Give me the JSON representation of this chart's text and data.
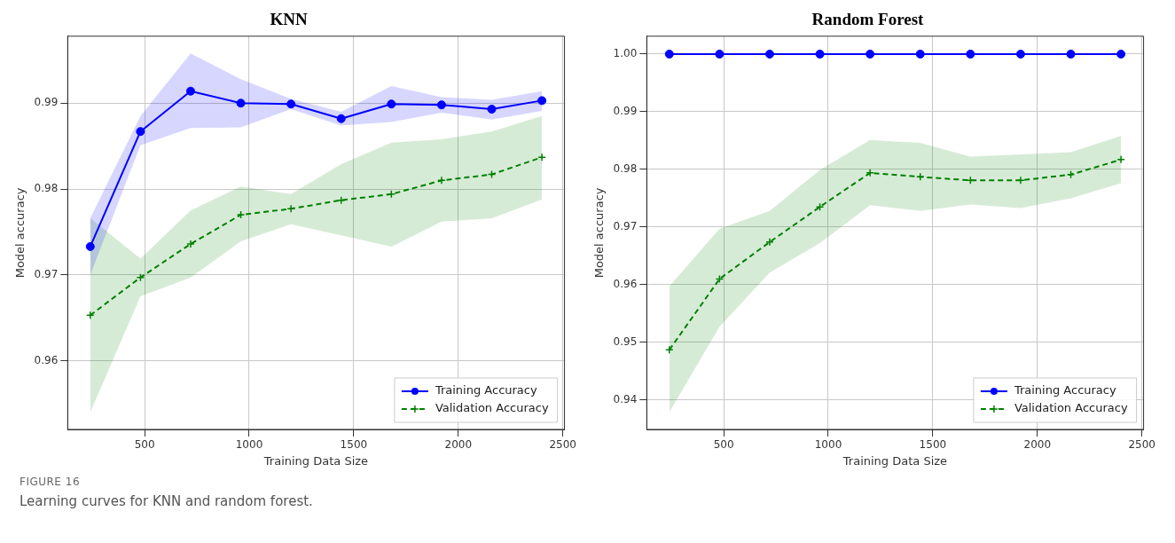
{
  "chart_data": [
    {
      "type": "line",
      "title": "KNN",
      "xlabel": "Training Data Size",
      "ylabel": "Model accuracy",
      "x": [
        240,
        480,
        720,
        960,
        1200,
        1440,
        1680,
        1920,
        2160,
        2400
      ],
      "xlim": [
        132,
        2508
      ],
      "xticks": [
        500,
        1000,
        1500,
        2000,
        2500
      ],
      "ylim": [
        0.952,
        0.9978
      ],
      "yticks": [
        0.96,
        0.97,
        0.98,
        0.99
      ],
      "grid": true,
      "legend": "bottom right",
      "annotations": [
        "FIGURE 16",
        "Learning curves for KNN and random forest."
      ],
      "series": [
        {
          "name": "Training Accuracy",
          "color": "#0000ff",
          "marker": "circle",
          "line_style": "solid",
          "values": [
            0.9733,
            0.9867,
            0.9914,
            0.99,
            0.9899,
            0.9882,
            0.9899,
            0.9898,
            0.9893,
            0.9903
          ],
          "lower": [
            0.97,
            0.9851,
            0.9871,
            0.9872,
            0.9893,
            0.9874,
            0.9878,
            0.9889,
            0.9881,
            0.9891
          ],
          "upper": [
            0.9766,
            0.9885,
            0.9958,
            0.9928,
            0.9905,
            0.989,
            0.992,
            0.9907,
            0.9904,
            0.9914
          ]
        },
        {
          "name": "Validation Accuracy",
          "color": "#008000",
          "marker": "cross",
          "line_style": "dashed",
          "values": [
            0.9653,
            0.9697,
            0.9736,
            0.977,
            0.9777,
            0.9787,
            0.9794,
            0.981,
            0.9817,
            0.9837
          ],
          "lower": [
            0.954,
            0.9675,
            0.9697,
            0.9739,
            0.9759,
            0.9746,
            0.9733,
            0.9762,
            0.9766,
            0.9788
          ],
          "upper": [
            0.9766,
            0.9719,
            0.9775,
            0.9803,
            0.9794,
            0.9829,
            0.9854,
            0.9858,
            0.9867,
            0.9885
          ]
        }
      ]
    },
    {
      "type": "line",
      "title": "Random Forest",
      "xlabel": "Training Data Size",
      "ylabel": "Model accuracy",
      "x": [
        240,
        480,
        720,
        960,
        1200,
        1440,
        1680,
        1920,
        2160,
        2400
      ],
      "xlim": [
        132,
        2508
      ],
      "xticks": [
        500,
        1000,
        1500,
        2000,
        2500
      ],
      "ylim": [
        0.9349,
        1.0031
      ],
      "yticks": [
        0.94,
        0.95,
        0.96,
        0.97,
        0.98,
        0.99,
        {
          "value": 1.0,
          "label": "1.00"
        }
      ],
      "grid": true,
      "legend": "bottom right",
      "series": [
        {
          "name": "Training Accuracy",
          "color": "#0000ff",
          "marker": "circle",
          "line_style": "solid",
          "values": [
            1.0,
            1.0,
            1.0,
            1.0,
            1.0,
            1.0,
            1.0,
            1.0,
            1.0,
            1.0
          ]
        },
        {
          "name": "Validation Accuracy",
          "color": "#008000",
          "marker": "cross",
          "line_style": "dashed",
          "values": [
            0.9487,
            0.961,
            0.9674,
            0.9735,
            0.9794,
            0.9787,
            0.9781,
            0.9781,
            0.9791,
            0.9817
          ],
          "lower": [
            0.9379,
            0.9527,
            0.9621,
            0.9672,
            0.9738,
            0.9728,
            0.9739,
            0.9733,
            0.975,
            0.9776
          ],
          "upper": [
            0.9597,
            0.9697,
            0.9728,
            0.9799,
            0.9851,
            0.9846,
            0.9822,
            0.9826,
            0.983,
            0.9858
          ]
        }
      ]
    }
  ]
}
